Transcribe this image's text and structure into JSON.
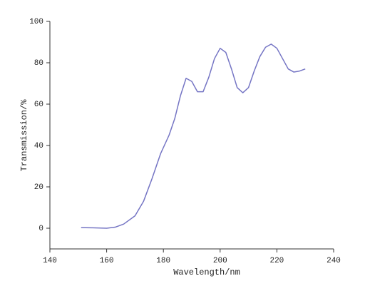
{
  "chart_data": {
    "type": "line",
    "x_label": "Wavelength/nm",
    "y_label": "Transmission/%",
    "series": [
      {
        "color": "#7575c4",
        "x": [
          151,
          155,
          160,
          163,
          166,
          170,
          173,
          176,
          179,
          182,
          184,
          186,
          188,
          190,
          192,
          194,
          196,
          198,
          200,
          202,
          204,
          206,
          208,
          210,
          212,
          214,
          216,
          218,
          220,
          222,
          224,
          226,
          228,
          230
        ],
        "values": [
          0.3,
          0.2,
          0,
          0.5,
          2,
          6,
          13,
          24,
          36,
          45,
          53,
          64,
          72.5,
          71,
          66,
          66,
          73,
          82,
          87,
          85,
          77,
          68,
          65.5,
          68,
          76,
          83,
          87.5,
          89,
          87,
          82,
          77,
          75.5,
          76,
          77
        ]
      }
    ],
    "xlim": [
      140,
      240
    ],
    "xticks": [
      140,
      160,
      180,
      200,
      220,
      240
    ],
    "ylim": [
      -10,
      100
    ],
    "yticks": [
      0,
      20,
      40,
      60,
      80,
      100
    ],
    "grid": false
  }
}
